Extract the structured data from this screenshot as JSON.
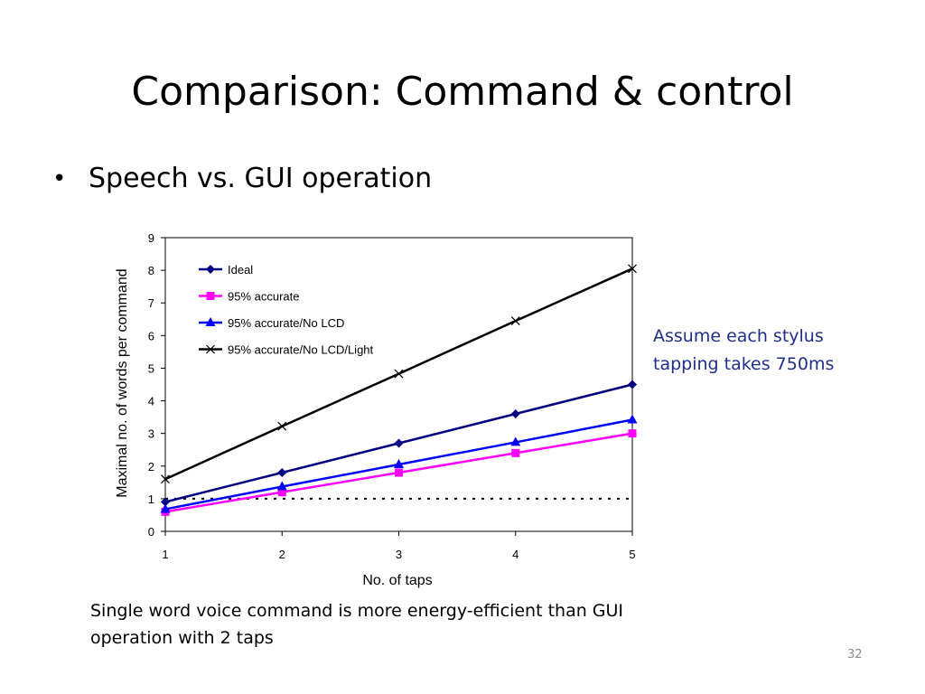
{
  "slide": {
    "title": "Comparison: Command & control",
    "bullet": "Speech vs. GUI operation",
    "note": "Assume each stylus tapping takes 750ms",
    "caption": "Single word voice command is more energy-efficient than GUI operation with 2 taps",
    "page_number": "32"
  },
  "chart_data": {
    "type": "line",
    "xlabel": "No. of taps",
    "ylabel": "Maximal no. of words per command",
    "x": [
      1,
      2,
      3,
      4,
      5
    ],
    "xlim": [
      1,
      5
    ],
    "ylim": [
      0,
      9
    ],
    "yticks": [
      0,
      1,
      2,
      3,
      4,
      5,
      6,
      7,
      8,
      9
    ],
    "grid": false,
    "legend_position": "top-left",
    "series": [
      {
        "name": "Ideal",
        "values": [
          0.9,
          1.8,
          2.7,
          3.6,
          4.5
        ],
        "color": "#000080",
        "marker": "diamond"
      },
      {
        "name": "95% accurate",
        "values": [
          0.6,
          1.2,
          1.8,
          2.4,
          3.0
        ],
        "color": "#ff00ff",
        "marker": "square"
      },
      {
        "name": "95% accurate/No LCD",
        "values": [
          0.68,
          1.37,
          2.05,
          2.73,
          3.42
        ],
        "color": "#0000ff",
        "marker": "triangle"
      },
      {
        "name": "95% accurate/No LCD/Light",
        "values": [
          1.6,
          3.22,
          4.83,
          6.45,
          8.05
        ],
        "color": "#000000",
        "marker": "x"
      }
    ],
    "reference_line": {
      "y": 1,
      "style": "dotted",
      "color": "#000000"
    }
  }
}
